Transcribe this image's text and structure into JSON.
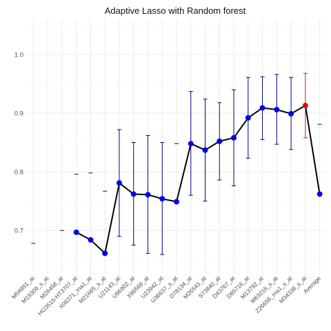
{
  "chart_data": {
    "type": "line",
    "title": "Adaptive Lasso  with Random forest",
    "xlabel": "",
    "ylabel": "",
    "ylim": [
      0.625,
      1.06
    ],
    "yticks": [
      0.7,
      0.8,
      0.9,
      1.0
    ],
    "ytick_labels": [
      "0.7",
      "0.8",
      "0.9",
      "1.0"
    ],
    "grid": true,
    "legend": "none",
    "categories": [
      "M54951_at",
      "M19309_s_at",
      "M28458_at",
      "HG3515-HT3707_at",
      "X06371_rna1_at",
      "M21665_s_at",
      "U21143_at",
      "U96902_at",
      "X86568_at",
      "U23942_at",
      "U36637_s_at",
      "D78134_at",
      "M26543_at",
      "S73840_at",
      "D43767_at",
      "D85716_at",
      "M13792_at",
      "M63216_s_at",
      "Z26656_rna1_s_at",
      "M34338_s_at",
      "Average"
    ],
    "series": [
      {
        "values": [
          null,
          null,
          null,
          0.697,
          0.684,
          0.661,
          0.781,
          0.762,
          0.761,
          0.754,
          0.749,
          0.848,
          0.837,
          0.852,
          0.858,
          0.892,
          0.909,
          0.906,
          0.899,
          0.913,
          0.762
        ],
        "error_low": [
          null,
          null,
          null,
          null,
          null,
          null,
          0.69,
          0.675,
          0.661,
          0.659,
          null,
          0.76,
          0.75,
          0.786,
          0.776,
          0.823,
          0.855,
          0.847,
          0.838,
          0.858,
          null
        ],
        "error_high": [
          null,
          null,
          null,
          null,
          null,
          null,
          0.872,
          0.85,
          0.862,
          0.85,
          null,
          0.937,
          0.924,
          0.918,
          0.94,
          0.961,
          0.962,
          0.966,
          0.961,
          0.968,
          null
        ]
      }
    ],
    "floating_ticks": [
      {
        "category": "M54951_at",
        "value": 0.678
      },
      {
        "category": "M28458_at",
        "value": 0.7
      },
      {
        "category": "HG3515-HT3707_at",
        "value": 0.796
      },
      {
        "category": "X06371_rna1_at",
        "value": 0.798
      },
      {
        "category": "M21665_s_at",
        "value": 0.767
      },
      {
        "category": "U36637_s_at",
        "value": 0.848
      },
      {
        "category": "Average",
        "value": 0.881
      }
    ],
    "highlight_category": "M34338_s_at",
    "colors": {
      "line": "#000000",
      "point": "#0000ee",
      "errorbar": "#00008b",
      "highlight_point": "#ee0000",
      "highlight_errorbar": "#b22222",
      "panel": "#ffffff",
      "grid_major": "#ebebeb",
      "grid_minor": "#f5f5f5",
      "text": "#4d4d4d",
      "title": "#111111"
    }
  }
}
